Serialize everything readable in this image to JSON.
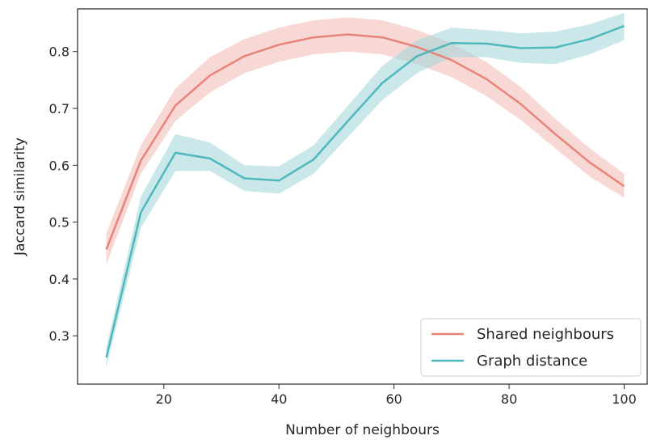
{
  "chart_data": {
    "type": "line",
    "title": "",
    "xlabel": "Number of neighbours",
    "ylabel": "Jaccard similarity",
    "xlim": [
      5,
      104
    ],
    "ylim": [
      0.215,
      0.875
    ],
    "xticks": [
      20,
      40,
      60,
      80,
      100
    ],
    "xtick_labels": [
      "20",
      "40",
      "60",
      "80",
      "100"
    ],
    "yticks": [
      0.3,
      0.4,
      0.5,
      0.6,
      0.7,
      0.8
    ],
    "ytick_labels": [
      "0.3",
      "0.4",
      "0.5",
      "0.6",
      "0.7",
      "0.8"
    ],
    "grid": false,
    "legend_position": "lower right",
    "x": [
      10,
      16,
      22,
      28,
      34,
      40,
      46,
      52,
      58,
      64,
      70,
      76,
      82,
      88,
      94,
      100
    ],
    "series": [
      {
        "name": "Shared neighbours",
        "color": "#e8837a",
        "band_color": "#f3b8b2",
        "values": [
          0.452,
          0.608,
          0.705,
          0.758,
          0.792,
          0.812,
          0.825,
          0.83,
          0.825,
          0.808,
          0.785,
          0.752,
          0.708,
          0.655,
          0.605,
          0.563
        ],
        "lower": [
          0.425,
          0.585,
          0.678,
          0.728,
          0.762,
          0.782,
          0.795,
          0.8,
          0.795,
          0.778,
          0.755,
          0.722,
          0.68,
          0.63,
          0.58,
          0.543
        ],
        "upper": [
          0.48,
          0.635,
          0.735,
          0.79,
          0.822,
          0.842,
          0.855,
          0.86,
          0.855,
          0.838,
          0.815,
          0.782,
          0.738,
          0.682,
          0.63,
          0.585
        ]
      },
      {
        "name": "Graph distance",
        "color": "#4fb8bd",
        "band_color": "#9fd6d8",
        "values": [
          0.262,
          0.517,
          0.622,
          0.612,
          0.577,
          0.573,
          0.61,
          0.678,
          0.745,
          0.792,
          0.815,
          0.814,
          0.806,
          0.807,
          0.822,
          0.845
        ],
        "lower": [
          0.245,
          0.49,
          0.59,
          0.59,
          0.555,
          0.55,
          0.585,
          0.65,
          0.715,
          0.762,
          0.79,
          0.79,
          0.78,
          0.778,
          0.795,
          0.82
        ],
        "upper": [
          0.28,
          0.545,
          0.655,
          0.64,
          0.6,
          0.598,
          0.635,
          0.705,
          0.775,
          0.82,
          0.842,
          0.838,
          0.832,
          0.835,
          0.848,
          0.868
        ]
      }
    ]
  }
}
